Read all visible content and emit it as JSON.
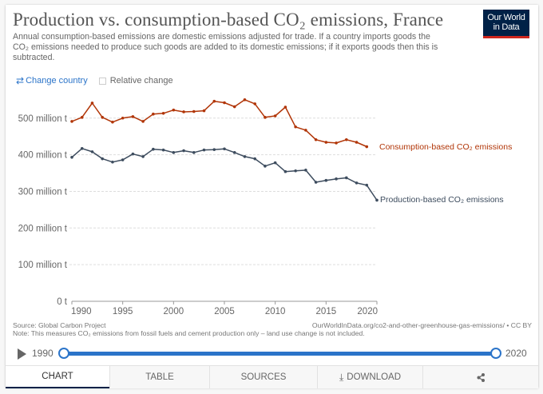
{
  "header": {
    "title": "Production vs. consumption-based CO₂ emissions, France",
    "subtitle": "Annual consumption-based emissions are domestic emissions adjusted for trade. If a country imports goods the CO₂ emissions needed to produce such goods are added to its domestic emissions; if it exports goods then this is subtracted.",
    "logo_line1": "Our World",
    "logo_line2": "in Data"
  },
  "controls": {
    "change_country": "Change country",
    "relative_change": "Relative change",
    "relative_change_checked": false
  },
  "colors": {
    "consumption": "#b13507",
    "production": "#3d4c5e",
    "accent": "#2b74c9",
    "brand": "#002147",
    "brand_stripe": "#ce261e"
  },
  "chart_data": {
    "type": "line",
    "title": "Production vs. consumption-based CO₂ emissions, France",
    "xlabel": "",
    "ylabel": "",
    "xlim": [
      1990,
      2020
    ],
    "ylim": [
      0,
      600
    ],
    "grid": true,
    "x_ticks": [
      1990,
      1995,
      2000,
      2005,
      2010,
      2015,
      2020
    ],
    "x_tick_labels": [
      "1990",
      "1995",
      "2000",
      "2005",
      "2010",
      "2015",
      "2020"
    ],
    "y_ticks": [
      0,
      100,
      200,
      300,
      400,
      500
    ],
    "y_tick_labels": [
      "0 t",
      "100 million t",
      "200 million t",
      "300 million t",
      "400 million t",
      "500 million t"
    ],
    "legend": "inline-right",
    "series": [
      {
        "name": "Consumption-based CO₂ emissions",
        "unit": "million t",
        "x": [
          1990,
          1991,
          1992,
          1993,
          1994,
          1995,
          1996,
          1997,
          1998,
          1999,
          2000,
          2001,
          2002,
          2003,
          2004,
          2005,
          2006,
          2007,
          2008,
          2009,
          2010,
          2011,
          2012,
          2013,
          2014,
          2015,
          2016,
          2017,
          2018,
          2019
        ],
        "values": [
          491,
          502,
          541,
          502,
          489,
          500,
          504,
          491,
          511,
          513,
          522,
          517,
          518,
          520,
          546,
          542,
          531,
          550,
          539,
          502,
          506,
          530,
          476,
          467,
          441,
          434,
          432,
          441,
          434,
          422
        ]
      },
      {
        "name": "Production-based CO₂ emissions",
        "unit": "million t",
        "x": [
          1990,
          1991,
          1992,
          1993,
          1994,
          1995,
          1996,
          1997,
          1998,
          1999,
          2000,
          2001,
          2002,
          2003,
          2004,
          2005,
          2006,
          2007,
          2008,
          2009,
          2010,
          2011,
          2012,
          2013,
          2014,
          2015,
          2016,
          2017,
          2018,
          2019,
          2020
        ],
        "values": [
          393,
          417,
          408,
          389,
          380,
          386,
          402,
          395,
          415,
          413,
          406,
          411,
          406,
          413,
          414,
          416,
          406,
          395,
          389,
          369,
          378,
          354,
          356,
          358,
          325,
          330,
          334,
          337,
          323,
          317,
          276
        ]
      }
    ]
  },
  "footer": {
    "source": "Source: Global Carbon Project",
    "url": "OurWorldInData.org/co2-and-other-greenhouse-gas-emissions/ • CC BY",
    "note": "Note: This measures CO₂ emissions from fossil fuels and cement production only – land use change is not included."
  },
  "timeline": {
    "start": "1990",
    "end": "2020"
  },
  "tabs": [
    {
      "label": "CHART",
      "active": true
    },
    {
      "label": "TABLE",
      "active": false
    },
    {
      "label": "SOURCES",
      "active": false
    },
    {
      "label": "DOWNLOAD",
      "active": false
    },
    {
      "label": "",
      "active": false
    }
  ]
}
